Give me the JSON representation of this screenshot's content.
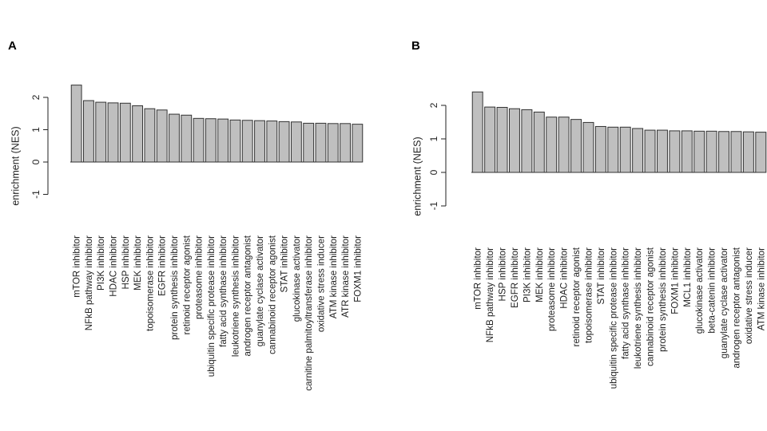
{
  "chart_data": [
    {
      "type": "bar",
      "panel": "A",
      "ylabel": "enrichment  (NES)",
      "yticks": [
        -1,
        0,
        1,
        2
      ],
      "ylim": [
        -1,
        2.4
      ],
      "grid": false,
      "bar_color": "#bfbfbf",
      "categories": [
        "mTOR inhibitor",
        "NFkB pathway inhibitor",
        "PI3K inhibitor",
        "HDAC inhibitor",
        "HSP inhibitor",
        "MEK inhibitor",
        "topoisomerase inhibitor",
        "EGFR inhibitor",
        "protein synthesis inhibitor",
        "retinoid receptor agonist",
        "proteasome inhibitor",
        "ubiquitin specific protease inhibitor",
        "fatty acid synthase inhibitor",
        "leukotriene synthesis inhibitor",
        "androgen receptor antagonist",
        "guanylate cyclase activator",
        "cannabinoid receptor agonist",
        "STAT inhibitor",
        "glucokinase activator",
        "carnitine palmitoyltransferase inhibitor",
        "oxidative stress inducer",
        "ATM kinase inhibitor",
        "ATR kinase inhibitor",
        "FOXM1 inhibitor"
      ],
      "values": [
        2.38,
        1.9,
        1.85,
        1.83,
        1.82,
        1.74,
        1.65,
        1.61,
        1.48,
        1.45,
        1.35,
        1.34,
        1.33,
        1.3,
        1.29,
        1.28,
        1.27,
        1.25,
        1.24,
        1.2,
        1.2,
        1.19,
        1.19,
        1.17
      ]
    },
    {
      "type": "bar",
      "panel": "B",
      "ylabel": "enrichment  (NES)",
      "yticks": [
        -1,
        0,
        1,
        2
      ],
      "ylim": [
        -1,
        2.4
      ],
      "grid": false,
      "bar_color": "#bfbfbf",
      "categories": [
        "mTOR inhibitor",
        "NFkB pathway inhibitor",
        "HSP inhibitor",
        "EGFR inhibitor",
        "PI3K inhibitor",
        "MEK inhibitor",
        "proteasome inhibitor",
        "HDAC inhibitor",
        "retinoid receptor agonist",
        "topoisomerase inhibitor",
        "STAT inhibitor",
        "ubiquitin specific protease inhibitor",
        "fatty acid synthase inhibitor",
        "leukotriene synthesis inhibitor",
        "cannabinoid receptor agonist",
        "protein synthesis inhibitor",
        "FOXM1 inhibitor",
        "MCL1 inhibitor",
        "glucokinase activator",
        "beta-catenin inhibitor",
        "guanylate cyclase activator",
        "androgen receptor antagonist",
        "oxidative stress inducer",
        "ATM kinase inhibitor"
      ],
      "values": [
        2.4,
        1.95,
        1.94,
        1.9,
        1.87,
        1.8,
        1.65,
        1.65,
        1.58,
        1.49,
        1.37,
        1.35,
        1.35,
        1.31,
        1.26,
        1.26,
        1.24,
        1.24,
        1.23,
        1.23,
        1.22,
        1.22,
        1.21,
        1.2
      ]
    }
  ]
}
